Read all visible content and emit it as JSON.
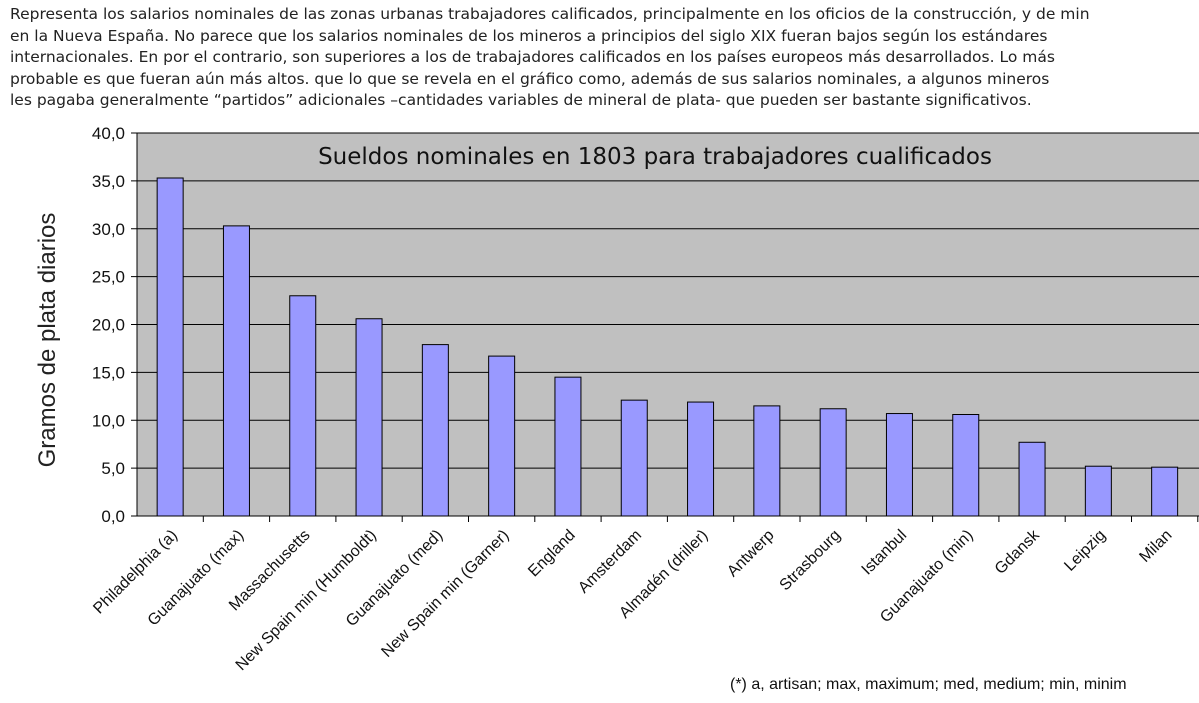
{
  "intro_lines": [
    "Representa los salarios nominales de las zonas urbanas trabajadores calificados, principalmente en los oficios de la construcción, y de min",
    "en la Nueva España. No parece que los salarios nominales de los mineros a principios del siglo  XIX fueran bajos según los estándares",
    "internacionales. En por el contrario, son superiores a los de trabajadores calificados en los países  europeos más desarrollados. Lo más",
    "probable es que fueran aún más altos. que lo que se revela en el gráfico como, además de sus salarios nominales, a algunos mineros",
    "les pagaba generalmente “partidos” adicionales –cantidades variables de mineral de plata- que pueden ser bastante significativos."
  ],
  "footnote": "(*) a, artisan; max, maximum; med, medium; min, minim",
  "chart_data": {
    "type": "bar",
    "title": "Sueldos nominales en 1803 para trabajadores cualificados",
    "xlabel": "",
    "ylabel": "Gramos de plata diarios",
    "ylim": [
      0,
      40
    ],
    "yticks": [
      "0,0",
      "5,0",
      "10,0",
      "15,0",
      "20,0",
      "25,0",
      "30,0",
      "35,0",
      "40,0"
    ],
    "grid": true,
    "legend": "none",
    "categories": [
      "Philadelphia (a)",
      "Guanajuato (max)",
      "Massachusetts",
      "New Spain min (Humboldt)",
      "Guanajuato (med)",
      "New Spain min (Garner)",
      "England",
      "Amsterdam",
      "Almadén (driller)",
      "Antwerp",
      "Strasbourg",
      "Istanbul",
      "Guanajuato (min)",
      "Gdansk",
      "Leipzig",
      "Milan"
    ],
    "values": [
      35.3,
      30.3,
      23.0,
      20.6,
      17.9,
      16.7,
      14.5,
      12.1,
      11.9,
      11.5,
      11.2,
      10.7,
      10.6,
      7.7,
      5.2,
      5.1
    ],
    "colors": {
      "bar": "#9999ff",
      "plot_bg": "#c0c0c0",
      "grid": "#000000"
    }
  }
}
